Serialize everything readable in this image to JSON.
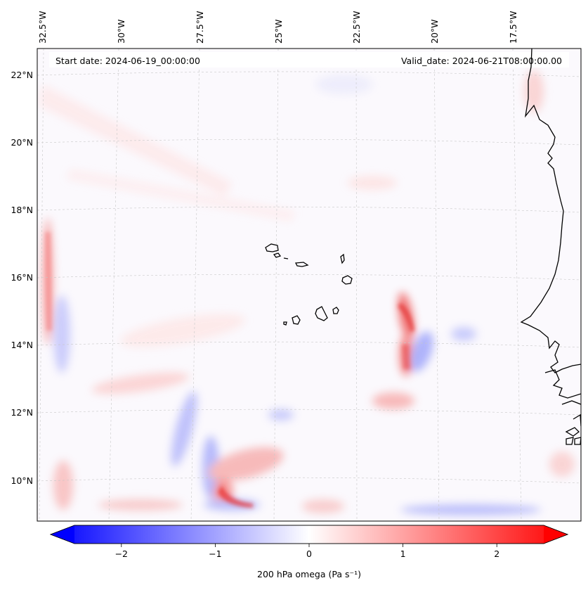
{
  "map": {
    "start_date": "Start date: 2024-06-19_00:00:00",
    "valid_date": "Valid_date: 2024-06-21T08:00:00.00",
    "lon_labels": [
      "32.5°W",
      "30°W",
      "27.5°W",
      "25°W",
      "22.5°W",
      "20°W",
      "17.5°W"
    ],
    "lat_labels": [
      "22°N",
      "20°N",
      "18°N",
      "16°N",
      "14°N",
      "12°N",
      "10°N"
    ],
    "gridlines": true,
    "colors": {
      "negative": "#0000ff",
      "zero": "#ffffff",
      "positive": "#ff0000",
      "coastline": "#000000"
    }
  },
  "colorbar": {
    "label": "200 hPa omega (Pa s⁻¹)",
    "ticks": [
      "−2",
      "−1",
      "0",
      "1",
      "2"
    ],
    "tick_values": [
      -2,
      -1,
      0,
      1,
      2
    ],
    "range": [
      -2.5,
      2.5
    ],
    "extend": "both"
  }
}
